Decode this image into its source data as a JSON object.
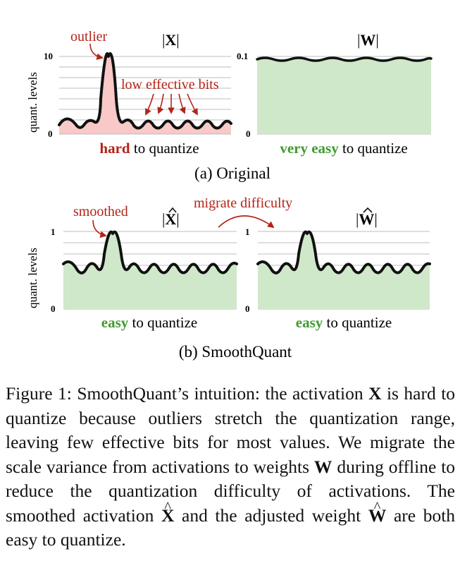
{
  "panels": {
    "a": {
      "caption": "(a) Original",
      "x_title_sym": "X",
      "w_title_sym": "W",
      "x_label_hard": "hard",
      "x_label_rest": "to quantize",
      "w_label_easy": "very easy",
      "w_label_rest": "to quantize",
      "ylabel": "quant. levels",
      "x_ymax": "10",
      "x_ymin": "0",
      "w_ymax": "0.1",
      "w_ymin": "0",
      "annotation_outlier": "outlier",
      "annotation_low_bits": "low effective bits"
    },
    "b": {
      "caption": "(b) SmoothQuant",
      "x_title_sym": "X",
      "w_title_sym": "W",
      "x_label_easy": "easy",
      "x_label_rest": "to quantize",
      "w_label_easy": "easy",
      "w_label_rest": "to quantize",
      "ylabel": "quant. levels",
      "x_ymax": "1",
      "x_ymin": "0",
      "w_ymax": "1",
      "w_ymin": "0",
      "annotation_smoothed": "smoothed",
      "annotation_migrate": "migrate difficulty"
    }
  },
  "colors": {
    "red_fill": "#f8c9c7",
    "green_fill": "#cfe8c9",
    "annotation_red": "#b22418",
    "label_green": "#3f9b2e",
    "grid": "#bdbdbd"
  },
  "caption": {
    "p1": "Figure 1: SmoothQuant’s intuition: the activation",
    "X1": "X",
    "p2": "is hard to quantize because outliers stretch the quantization range, leaving few effective bits for most values. We migrate the scale variance from activations to weights",
    "W1": "W",
    "p3": "during offline to reduce the quantization difficulty of activations. The smoothed activation",
    "X2": "X",
    "p4": "and the adjusted weight",
    "W2": "W",
    "p5": "are both easy to quantize."
  }
}
